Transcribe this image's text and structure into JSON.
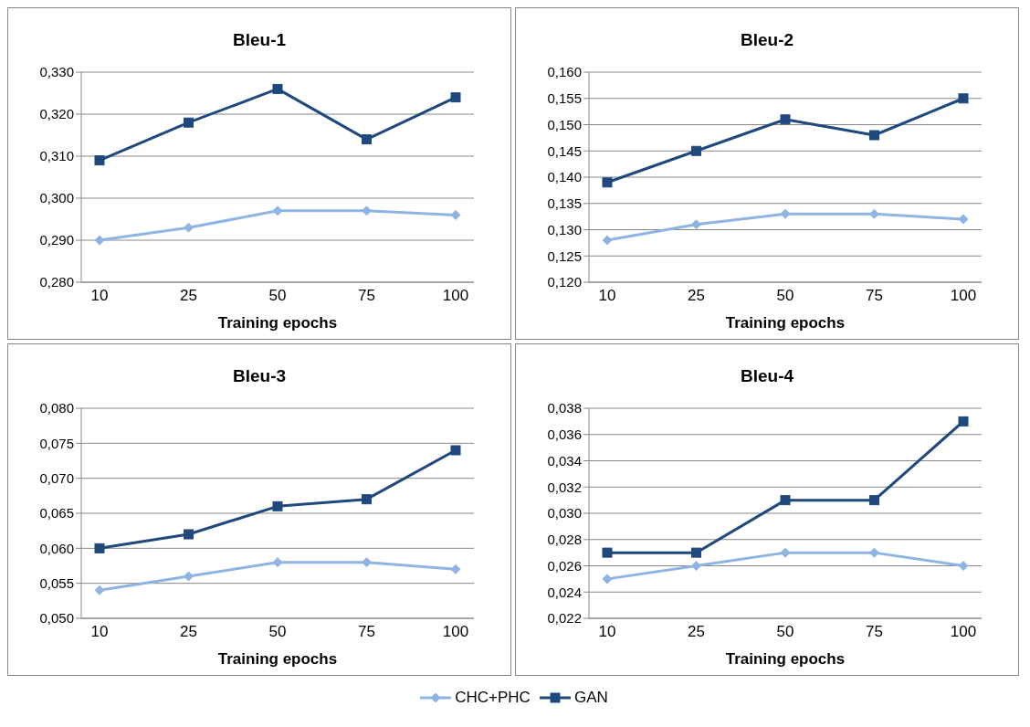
{
  "chart_data": [
    {
      "type": "line",
      "title": "Bleu-1",
      "xlabel": "Training epochs",
      "categories": [
        "10",
        "25",
        "50",
        "75",
        "100"
      ],
      "grid": "y",
      "legend": "bottom",
      "ylim": [
        0.28,
        0.33
      ],
      "yticks": [
        {
          "value": 0.28,
          "label": "0,280"
        },
        {
          "value": 0.29,
          "label": "0,290"
        },
        {
          "value": 0.3,
          "label": "0,300"
        },
        {
          "value": 0.31,
          "label": "0,310"
        },
        {
          "value": 0.32,
          "label": "0,320"
        },
        {
          "value": 0.33,
          "label": "0,330"
        }
      ],
      "series": [
        {
          "name": "CHC+PHC",
          "color": "#8eb4e3",
          "marker": "diamond",
          "values": [
            0.29,
            0.293,
            0.297,
            0.297,
            0.296
          ]
        },
        {
          "name": "GAN",
          "color": "#1f497d",
          "marker": "square",
          "values": [
            0.309,
            0.318,
            0.326,
            0.314,
            0.324
          ]
        }
      ]
    },
    {
      "type": "line",
      "title": "Bleu-2",
      "xlabel": "Training epochs",
      "categories": [
        "10",
        "25",
        "50",
        "75",
        "100"
      ],
      "grid": "y",
      "ylim": [
        0.12,
        0.16
      ],
      "yticks": [
        {
          "value": 0.12,
          "label": "0,120"
        },
        {
          "value": 0.125,
          "label": "0,125"
        },
        {
          "value": 0.13,
          "label": "0,130"
        },
        {
          "value": 0.135,
          "label": "0,135"
        },
        {
          "value": 0.14,
          "label": "0,140"
        },
        {
          "value": 0.145,
          "label": "0,145"
        },
        {
          "value": 0.15,
          "label": "0,150"
        },
        {
          "value": 0.155,
          "label": "0,155"
        },
        {
          "value": 0.16,
          "label": "0,160"
        }
      ],
      "series": [
        {
          "color": "#8eb4e3",
          "marker": "diamond",
          "values": [
            0.128,
            0.131,
            0.133,
            0.133,
            0.132
          ]
        },
        {
          "color": "#1f497d",
          "marker": "square",
          "values": [
            0.139,
            0.145,
            0.151,
            0.148,
            0.155
          ]
        }
      ]
    },
    {
      "type": "line",
      "title": "Bleu-3",
      "xlabel": "Training epochs",
      "categories": [
        "10",
        "25",
        "50",
        "75",
        "100"
      ],
      "grid": "y",
      "ylim": [
        0.05,
        0.08
      ],
      "yticks": [
        {
          "value": 0.05,
          "label": "0,050"
        },
        {
          "value": 0.055,
          "label": "0,055"
        },
        {
          "value": 0.06,
          "label": "0,060"
        },
        {
          "value": 0.065,
          "label": "0,065"
        },
        {
          "value": 0.07,
          "label": "0,070"
        },
        {
          "value": 0.075,
          "label": "0,075"
        },
        {
          "value": 0.08,
          "label": "0,080"
        }
      ],
      "series": [
        {
          "color": "#8eb4e3",
          "marker": "diamond",
          "values": [
            0.054,
            0.056,
            0.058,
            0.058,
            0.057
          ]
        },
        {
          "color": "#1f497d",
          "marker": "square",
          "values": [
            0.06,
            0.062,
            0.066,
            0.067,
            0.074
          ]
        }
      ]
    },
    {
      "type": "line",
      "title": "Bleu-4",
      "xlabel": "Training epochs",
      "categories": [
        "10",
        "25",
        "50",
        "75",
        "100"
      ],
      "grid": "y",
      "ylim": [
        0.022,
        0.038
      ],
      "yticks": [
        {
          "value": 0.022,
          "label": "0,022"
        },
        {
          "value": 0.024,
          "label": "0,024"
        },
        {
          "value": 0.026,
          "label": "0,026"
        },
        {
          "value": 0.028,
          "label": "0,028"
        },
        {
          "value": 0.03,
          "label": "0,030"
        },
        {
          "value": 0.032,
          "label": "0,032"
        },
        {
          "value": 0.034,
          "label": "0,034"
        },
        {
          "value": 0.036,
          "label": "0,036"
        },
        {
          "value": 0.038,
          "label": "0,038"
        }
      ],
      "series": [
        {
          "color": "#8eb4e3",
          "marker": "diamond",
          "values": [
            0.025,
            0.026,
            0.027,
            0.027,
            0.026
          ]
        },
        {
          "color": "#1f497d",
          "marker": "square",
          "values": [
            0.027,
            0.027,
            0.031,
            0.031,
            0.037
          ]
        }
      ]
    }
  ]
}
